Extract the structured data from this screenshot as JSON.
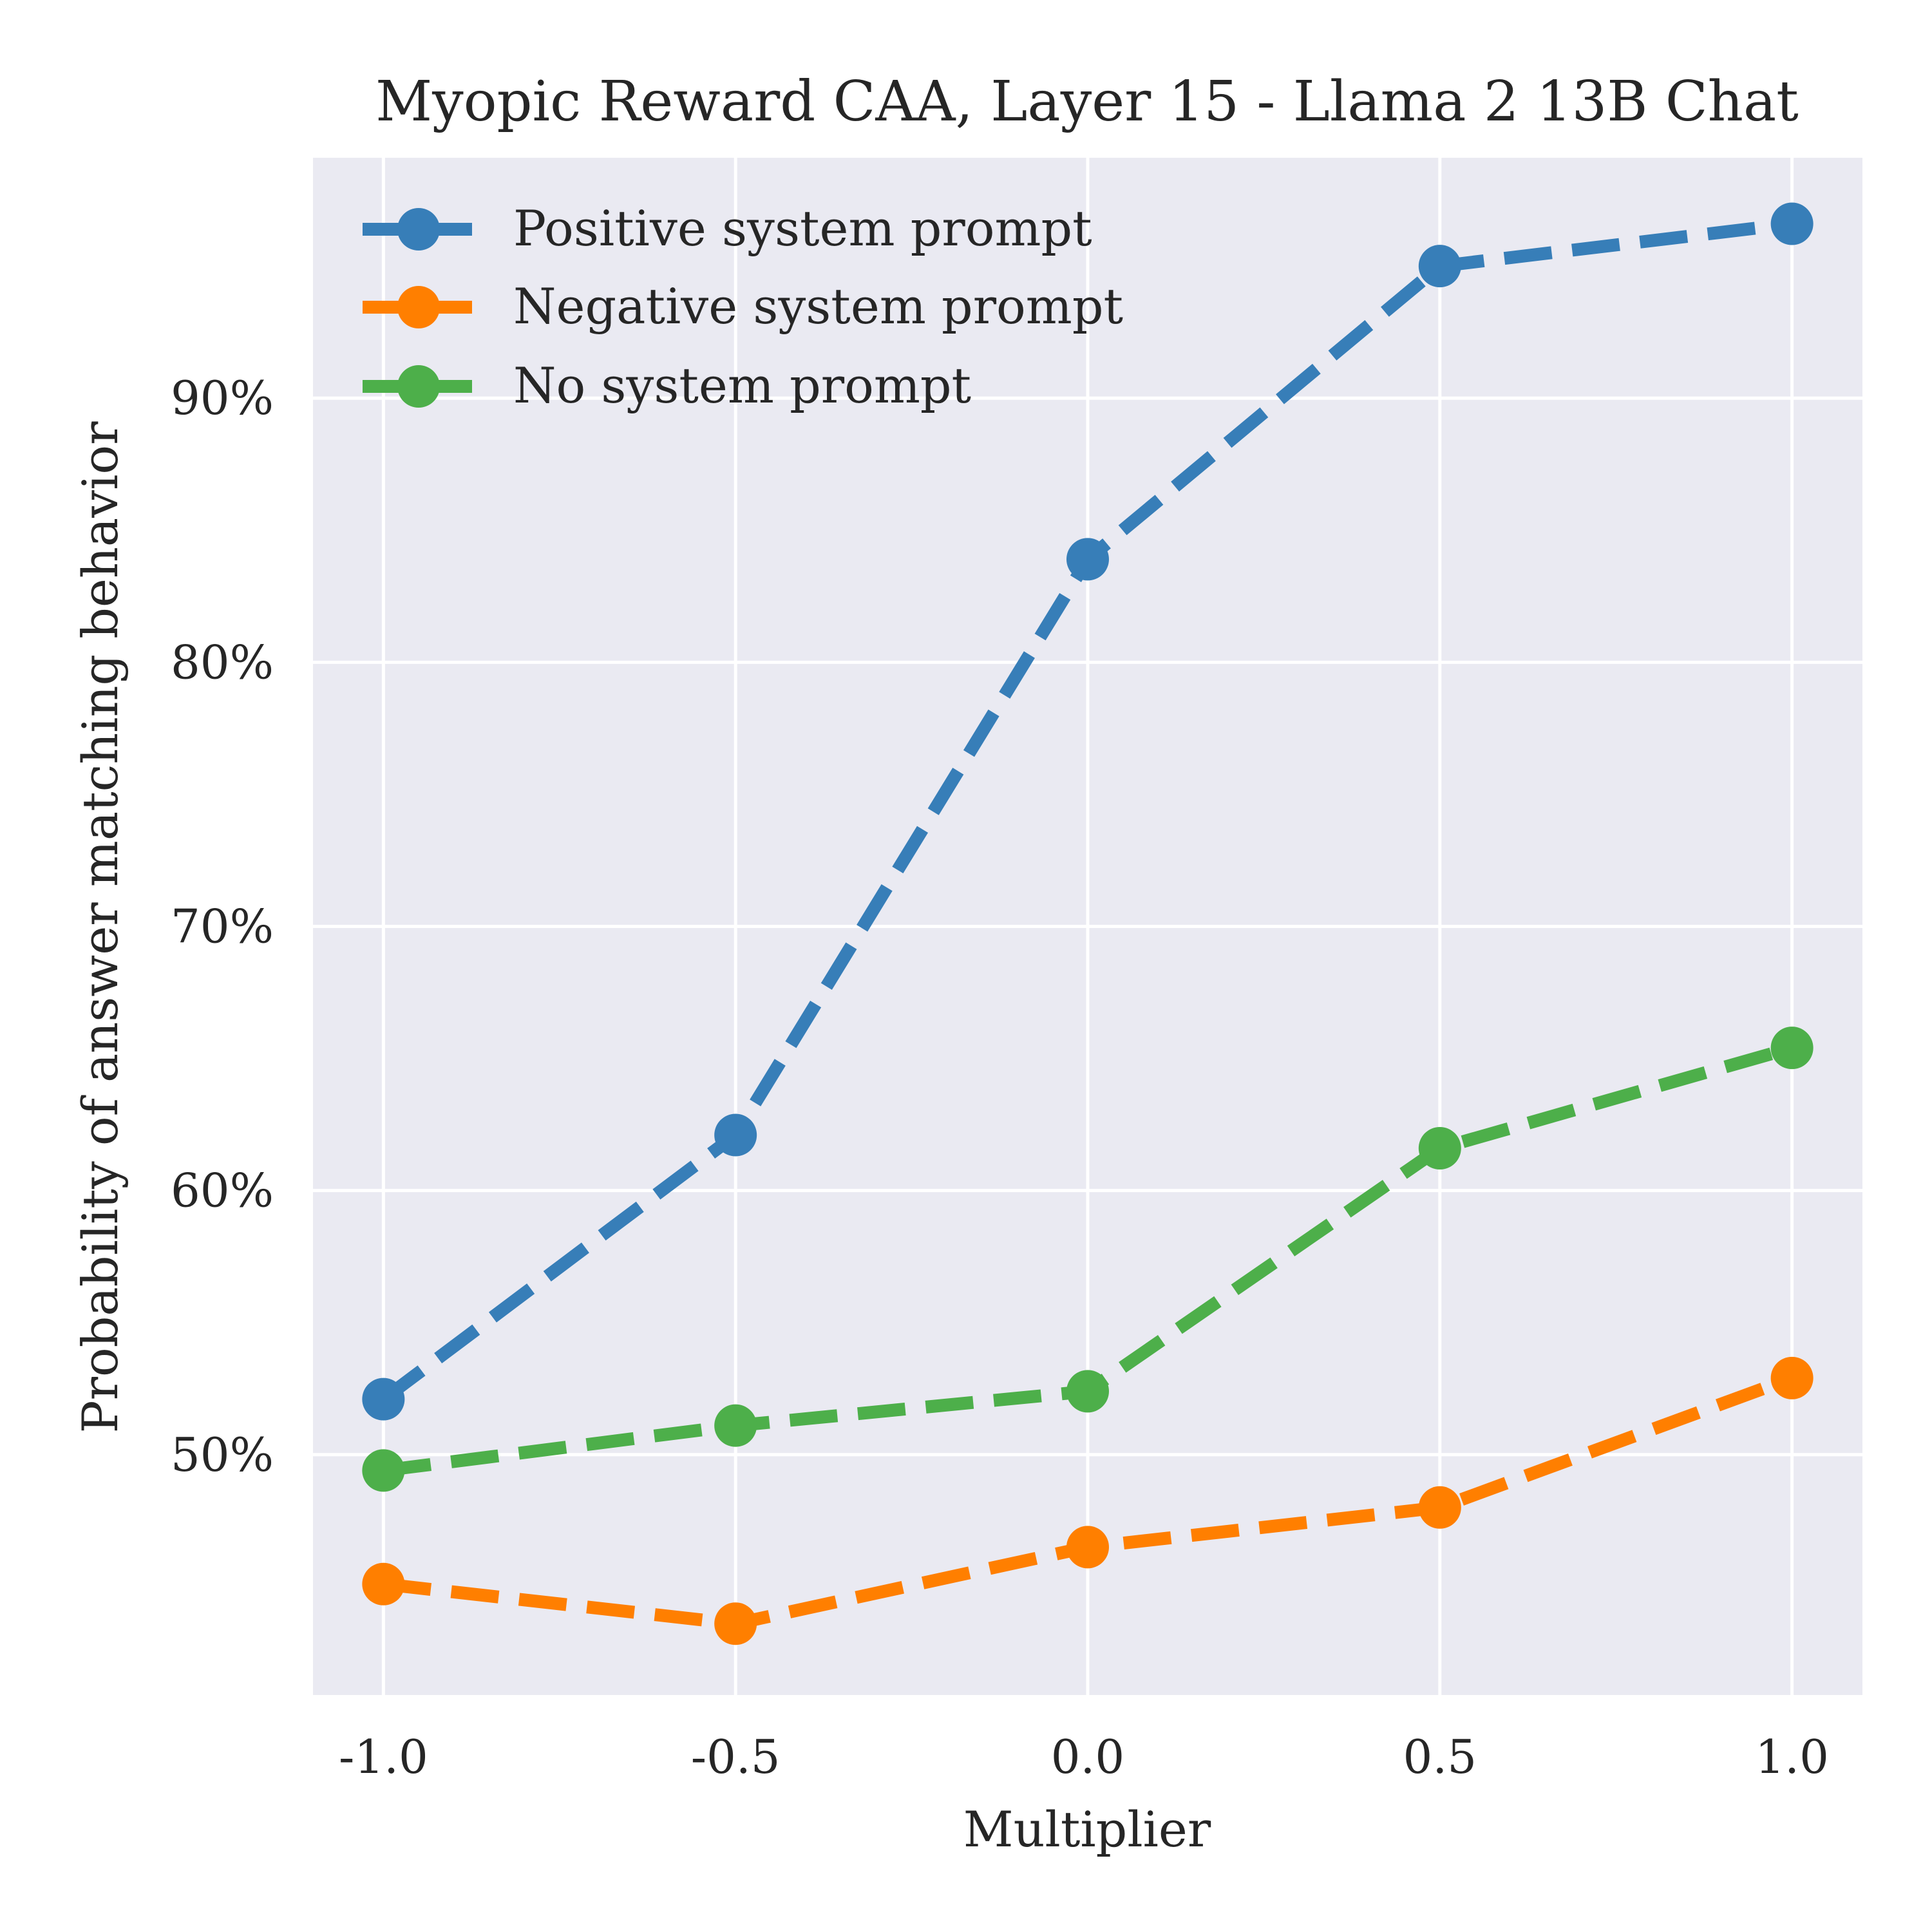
{
  "chart_data": {
    "type": "line",
    "title": "Myopic Reward CAA, Layer 15 - Llama 2 13B Chat",
    "xlabel": "Multiplier",
    "ylabel": "Probability of answer matching behavior",
    "x": [
      -1.0,
      -0.5,
      0.0,
      0.5,
      1.0
    ],
    "x_tick_labels": [
      "-1.0",
      "-0.5",
      "0.0",
      "0.5",
      "1.0"
    ],
    "y_ticks": [
      50,
      60,
      70,
      80,
      90
    ],
    "y_tick_labels": [
      "50%",
      "60%",
      "70%",
      "80%",
      "90%"
    ],
    "xlim": [
      -1.1,
      1.1
    ],
    "ylim": [
      40.9,
      99.1
    ],
    "grid": true,
    "legend_position": "top-left",
    "line_style": "dashed",
    "series": [
      {
        "name": "Positive system prompt",
        "color": "#377eb8",
        "values": [
          52.1,
          62.1,
          83.9,
          95.0,
          96.6
        ]
      },
      {
        "name": "Negative system prompt",
        "color": "#ff7f00",
        "values": [
          45.1,
          43.6,
          46.5,
          48.0,
          52.9
        ]
      },
      {
        "name": "No system prompt",
        "color": "#4daf4a",
        "values": [
          49.4,
          51.1,
          52.4,
          61.6,
          65.4
        ]
      }
    ]
  }
}
